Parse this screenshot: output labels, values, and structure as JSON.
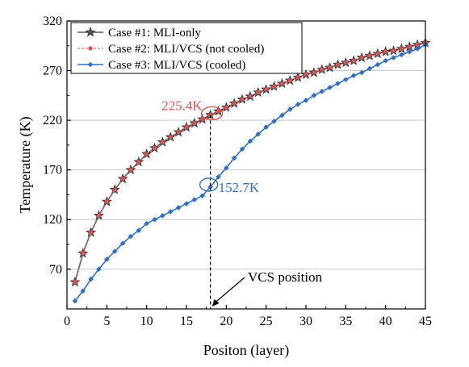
{
  "chart_data": {
    "type": "line",
    "xlabel": "Positon (layer)",
    "ylabel": "Temperature (K)",
    "xlim": [
      0,
      45
    ],
    "ylim": [
      30,
      320
    ],
    "xticks": [
      0,
      5,
      10,
      15,
      20,
      25,
      30,
      35,
      40,
      45
    ],
    "yticks": [
      70,
      120,
      170,
      220,
      270,
      320
    ],
    "grid": "horizontal",
    "legend_position": "top-left",
    "x": [
      1,
      2,
      3,
      4,
      5,
      6,
      7,
      8,
      9,
      10,
      11,
      12,
      13,
      14,
      15,
      16,
      17,
      18,
      19,
      20,
      21,
      22,
      23,
      24,
      25,
      26,
      27,
      28,
      29,
      30,
      31,
      32,
      33,
      34,
      35,
      36,
      37,
      38,
      39,
      40,
      41,
      42,
      43,
      44,
      45
    ],
    "series": [
      {
        "name": "Case #1: MLI-only",
        "color": "#555555",
        "marker": "star",
        "values": [
          57,
          86,
          107,
          124,
          138,
          150,
          161,
          170,
          178,
          186,
          192,
          198,
          203,
          208,
          213,
          217,
          221,
          225.4,
          229,
          233,
          237,
          241,
          244,
          248,
          251,
          254,
          257,
          260,
          263,
          266,
          268,
          271,
          273,
          276,
          278,
          280,
          283,
          285,
          287,
          289,
          290,
          292,
          294,
          296,
          298
        ]
      },
      {
        "name": "Case #2: MLI/VCS (not cooled)",
        "color": "#e05050",
        "marker": "dot",
        "dashed": true,
        "values": [
          57,
          86,
          107,
          124,
          138,
          150,
          161,
          170,
          178,
          186,
          192,
          198,
          203,
          208,
          213,
          217,
          221,
          225.4,
          229,
          233,
          237,
          241,
          244,
          248,
          251,
          254,
          257,
          260,
          263,
          266,
          268,
          271,
          273,
          276,
          278,
          280,
          283,
          285,
          287,
          289,
          290,
          292,
          294,
          296,
          298
        ]
      },
      {
        "name": "Case #3: MLI/VCS (cooled)",
        "color": "#2f6fc4",
        "marker": "diamond",
        "values": [
          38,
          48,
          60,
          70,
          80,
          88,
          96,
          103,
          109,
          116,
          120,
          124,
          128,
          132,
          136,
          140,
          144,
          152.7,
          163,
          172,
          182,
          191,
          199,
          206,
          213,
          219,
          225,
          231,
          236,
          240,
          245,
          249,
          253,
          257,
          261,
          265,
          268,
          272,
          276,
          280,
          283,
          286,
          289,
          292,
          296
        ]
      }
    ],
    "annotations": [
      {
        "text": "225.4K",
        "color": "#e05050"
      },
      {
        "text": "152.7K",
        "color": "#2f6fc4"
      },
      {
        "text": "VCS position",
        "color": "#000000"
      }
    ]
  }
}
